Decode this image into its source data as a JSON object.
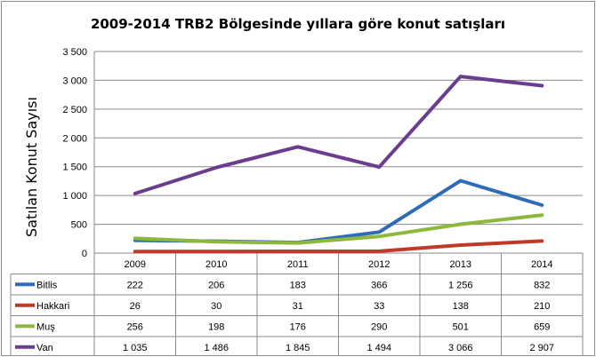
{
  "chart_data": {
    "type": "line",
    "title": "2009-2014 TRB2 Bölgesinde yıllara göre konut satışları",
    "ylabel": "Satılan Konut Sayısı",
    "xlabel": "",
    "ylim": [
      0,
      3500
    ],
    "yticks": [
      "0",
      "500",
      "1 000",
      "1 500",
      "2 000",
      "2 500",
      "3 000",
      "3 500"
    ],
    "categories": [
      "2009",
      "2010",
      "2011",
      "2012",
      "2013",
      "2014"
    ],
    "grid": true,
    "legend": "data-table",
    "series": [
      {
        "name": "Bitlis",
        "color": "#2e6bb8",
        "values": [
          222,
          206,
          183,
          366,
          1256,
          832
        ],
        "labels": [
          "222",
          "206",
          "183",
          "366",
          "1 256",
          "832"
        ]
      },
      {
        "name": "Hakkari",
        "color": "#c0392b",
        "values": [
          26,
          30,
          31,
          33,
          138,
          210
        ],
        "labels": [
          "26",
          "30",
          "31",
          "33",
          "138",
          "210"
        ]
      },
      {
        "name": "Muş",
        "color": "#8db83c",
        "values": [
          256,
          198,
          176,
          290,
          501,
          659
        ],
        "labels": [
          "256",
          "198",
          "176",
          "290",
          "501",
          "659"
        ]
      },
      {
        "name": "Van",
        "color": "#6a3d8f",
        "values": [
          1035,
          1486,
          1845,
          1494,
          3066,
          2907
        ],
        "labels": [
          "1 035",
          "1 486",
          "1 845",
          "1 494",
          "3 066",
          "2 907"
        ]
      }
    ]
  }
}
